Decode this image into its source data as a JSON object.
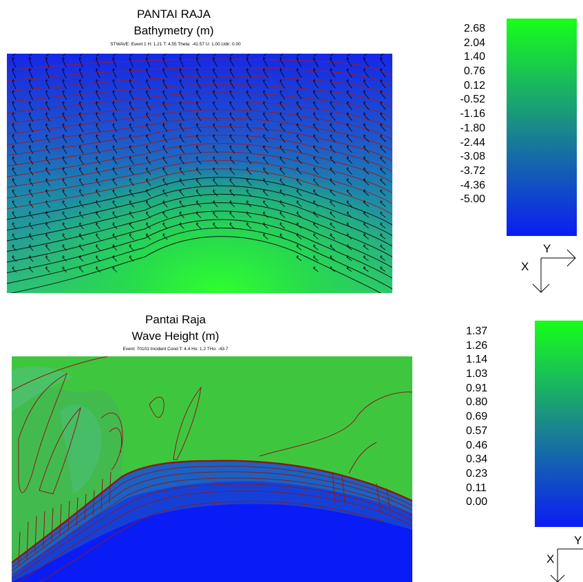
{
  "chart_data": [
    {
      "type": "heatmap",
      "title": "PANTAI RAJA",
      "subtitle": "Bathymetry (m)",
      "caption": "STWAVE: Event 1 H: 1.21 T: 4.55 Theta: -41.57 U: 1.00 Udir: 0.00",
      "legend": {
        "values": [
          "2.68",
          "2.04",
          "1.40",
          "0.76",
          "0.12",
          "-0.52",
          "-1.16",
          "-1.80",
          "-2.44",
          "-3.08",
          "-3.72",
          "-4.36",
          "-5.00"
        ],
        "min": -5.0,
        "max": 2.68,
        "color_low": "#0a1cf5",
        "color_high": "#18ff18"
      },
      "axes": {
        "x_label": "X",
        "y_label": "Y"
      },
      "overlay": "wave direction vectors"
    },
    {
      "type": "heatmap",
      "title": "Pantai Raja",
      "subtitle": "Wave Height (m)",
      "caption": "Event: 70101 Incident Cond T: 4.4 Ho: 1.2 THo: -43.7",
      "legend": {
        "values": [
          "1.37",
          "1.26",
          "1.14",
          "1.03",
          "0.91",
          "0.80",
          "0.69",
          "0.57",
          "0.46",
          "0.34",
          "0.23",
          "0.11",
          "0.00"
        ],
        "min": 0.0,
        "max": 1.37,
        "color_low": "#0a1cf5",
        "color_high": "#18ff18"
      },
      "axes": {
        "x_label": "X",
        "y_label": "Y"
      }
    }
  ]
}
